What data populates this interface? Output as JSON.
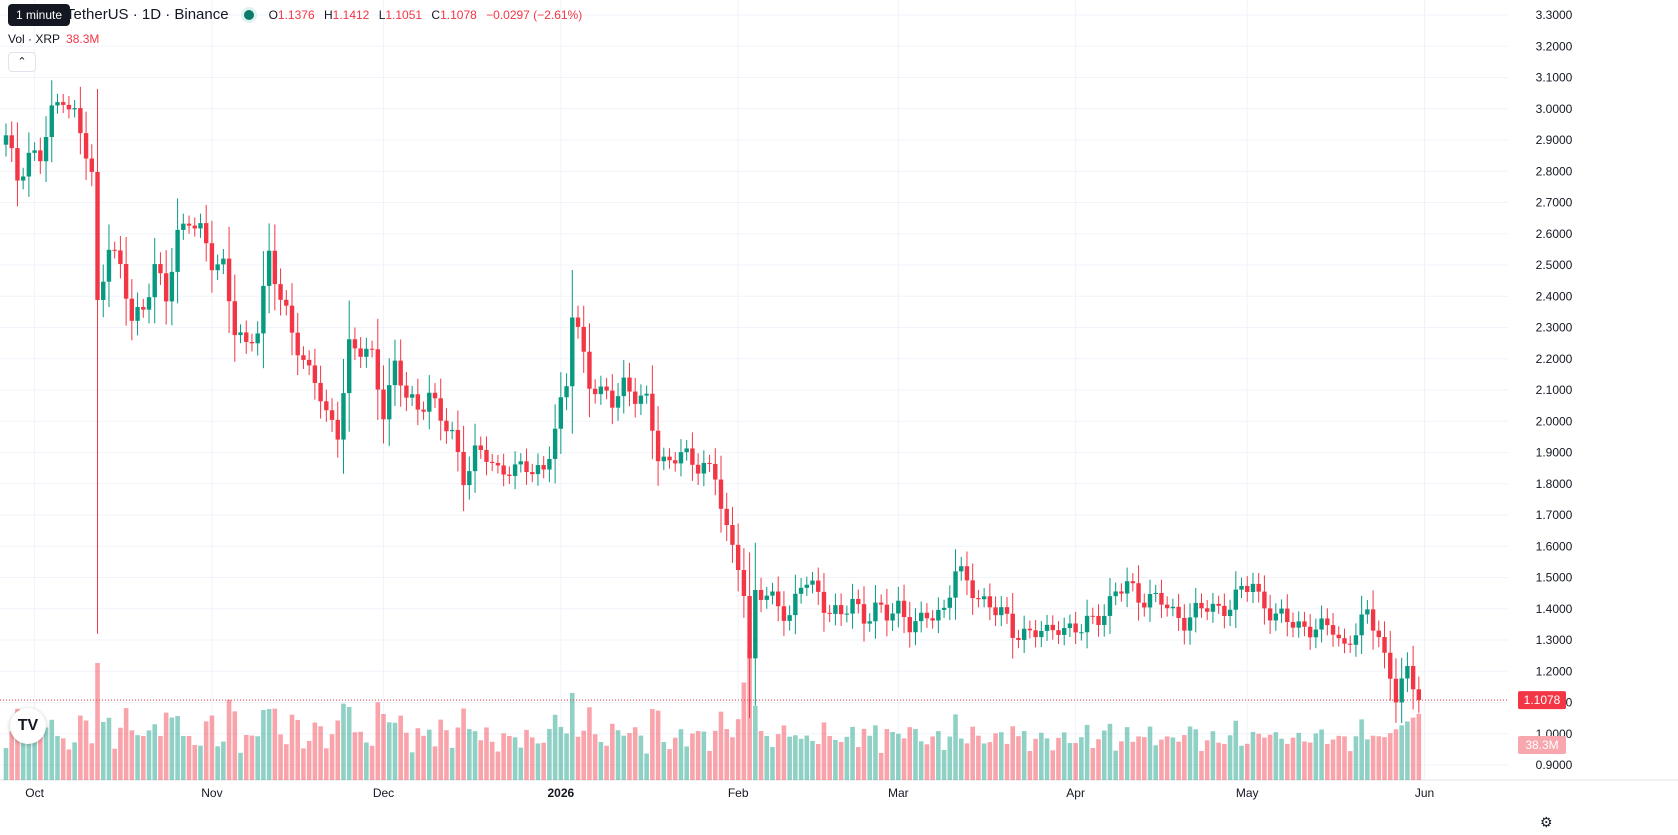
{
  "header": {
    "symbol": "TetherUS · 1D · Binance",
    "tooltip": "1 minute",
    "ohlc": {
      "o_label": "O",
      "o": "1.1376",
      "h_label": "H",
      "h": "1.1412",
      "l_label": "L",
      "l": "1.1051",
      "c_label": "C",
      "c": "1.1078",
      "change": "−0.0297 (−2.61%)"
    },
    "volume_label": "Vol · XRP",
    "volume_value": "38.3M",
    "collapse_icon": "chevron-up-icon",
    "logo_text": "TV",
    "settings_icon": "gear-icon"
  },
  "chart_data": {
    "type": "candlestick",
    "title": "",
    "up_color": "#089981",
    "down_color": "#f23645",
    "y_ticks": [
      "3.3000",
      "3.2000",
      "3.1000",
      "3.0000",
      "2.9000",
      "2.8000",
      "2.7000",
      "2.6000",
      "2.5000",
      "2.4000",
      "2.3000",
      "2.2000",
      "2.1000",
      "2.0000",
      "1.9000",
      "1.8000",
      "1.7000",
      "1.6000",
      "1.5000",
      "1.4000",
      "1.3000",
      "1.2000",
      "1.1000",
      "1.0000",
      "0.9000"
    ],
    "ylim": [
      0.9,
      3.3
    ],
    "x_labels": [
      {
        "label": "Oct",
        "day": 5
      },
      {
        "label": "Nov",
        "day": 36
      },
      {
        "label": "Dec",
        "day": 66
      },
      {
        "label": "2026",
        "day": 97
      },
      {
        "label": "Feb",
        "day": 128
      },
      {
        "label": "Mar",
        "day": 156
      },
      {
        "label": "Apr",
        "day": 187
      },
      {
        "label": "May",
        "day": 217
      },
      {
        "label": "Jun",
        "day": 248
      }
    ],
    "last_price": "1.1078",
    "last_volume": "38.3M",
    "anchors": [
      [
        0,
        2.9
      ],
      [
        2,
        2.78
      ],
      [
        4,
        2.86
      ],
      [
        6,
        2.84
      ],
      [
        8,
        2.98
      ],
      [
        10,
        3.05
      ],
      [
        12,
        2.98
      ],
      [
        14,
        2.85
      ],
      [
        15,
        2.78
      ],
      [
        16,
        2.37
      ],
      [
        18,
        2.58
      ],
      [
        20,
        2.48
      ],
      [
        22,
        2.32
      ],
      [
        24,
        2.37
      ],
      [
        26,
        2.5
      ],
      [
        28,
        2.38
      ],
      [
        30,
        2.6
      ],
      [
        32,
        2.66
      ],
      [
        34,
        2.6
      ],
      [
        36,
        2.5
      ],
      [
        38,
        2.51
      ],
      [
        40,
        2.3
      ],
      [
        42,
        2.22
      ],
      [
        44,
        2.3
      ],
      [
        46,
        2.55
      ],
      [
        48,
        2.38
      ],
      [
        50,
        2.28
      ],
      [
        52,
        2.2
      ],
      [
        54,
        2.14
      ],
      [
        56,
        2.0
      ],
      [
        58,
        1.97
      ],
      [
        60,
        2.25
      ],
      [
        62,
        2.22
      ],
      [
        64,
        2.2
      ],
      [
        66,
        2.04
      ],
      [
        68,
        2.18
      ],
      [
        70,
        2.07
      ],
      [
        72,
        2.04
      ],
      [
        74,
        2.1
      ],
      [
        76,
        2.0
      ],
      [
        78,
        1.95
      ],
      [
        80,
        1.83
      ],
      [
        82,
        1.9
      ],
      [
        84,
        1.88
      ],
      [
        86,
        1.84
      ],
      [
        88,
        1.86
      ],
      [
        90,
        1.84
      ],
      [
        92,
        1.84
      ],
      [
        94,
        1.85
      ],
      [
        96,
        1.98
      ],
      [
        98,
        2.1
      ],
      [
        99,
        2.35
      ],
      [
        100,
        2.3
      ],
      [
        102,
        2.13
      ],
      [
        104,
        2.08
      ],
      [
        106,
        2.06
      ],
      [
        108,
        2.13
      ],
      [
        110,
        2.08
      ],
      [
        112,
        2.05
      ],
      [
        114,
        1.9
      ],
      [
        116,
        1.87
      ],
      [
        118,
        1.9
      ],
      [
        120,
        1.85
      ],
      [
        122,
        1.88
      ],
      [
        124,
        1.82
      ],
      [
        126,
        1.64
      ],
      [
        127,
        1.58
      ],
      [
        128,
        1.55
      ],
      [
        129,
        1.47
      ],
      [
        130,
        1.23
      ],
      [
        131,
        1.45
      ],
      [
        133,
        1.43
      ],
      [
        135,
        1.42
      ],
      [
        137,
        1.38
      ],
      [
        139,
        1.47
      ],
      [
        140,
        1.48
      ],
      [
        142,
        1.45
      ],
      [
        144,
        1.4
      ],
      [
        146,
        1.37
      ],
      [
        148,
        1.42
      ],
      [
        150,
        1.38
      ],
      [
        152,
        1.4
      ],
      [
        154,
        1.37
      ],
      [
        156,
        1.41
      ],
      [
        158,
        1.36
      ],
      [
        160,
        1.35
      ],
      [
        162,
        1.38
      ],
      [
        164,
        1.4
      ],
      [
        166,
        1.53
      ],
      [
        168,
        1.47
      ],
      [
        170,
        1.44
      ],
      [
        172,
        1.42
      ],
      [
        174,
        1.38
      ],
      [
        176,
        1.32
      ],
      [
        178,
        1.33
      ],
      [
        180,
        1.33
      ],
      [
        182,
        1.31
      ],
      [
        184,
        1.35
      ],
      [
        186,
        1.34
      ],
      [
        188,
        1.33
      ],
      [
        190,
        1.36
      ],
      [
        192,
        1.4
      ],
      [
        194,
        1.45
      ],
      [
        196,
        1.47
      ],
      [
        198,
        1.44
      ],
      [
        200,
        1.44
      ],
      [
        202,
        1.42
      ],
      [
        204,
        1.38
      ],
      [
        206,
        1.37
      ],
      [
        208,
        1.39
      ],
      [
        210,
        1.4
      ],
      [
        212,
        1.4
      ],
      [
        214,
        1.42
      ],
      [
        216,
        1.45
      ],
      [
        218,
        1.48
      ],
      [
        219,
        1.44
      ],
      [
        220,
        1.42
      ],
      [
        222,
        1.37
      ],
      [
        224,
        1.36
      ],
      [
        226,
        1.35
      ],
      [
        228,
        1.34
      ],
      [
        230,
        1.33
      ],
      [
        232,
        1.34
      ],
      [
        234,
        1.28
      ],
      [
        236,
        1.33
      ],
      [
        238,
        1.37
      ],
      [
        240,
        1.33
      ],
      [
        241,
        1.25
      ],
      [
        242,
        1.18
      ],
      [
        243,
        1.12
      ],
      [
        244,
        1.16
      ],
      [
        245,
        1.18
      ],
      [
        246,
        1.15
      ],
      [
        247,
        1.1078
      ]
    ],
    "volume_max": 38.3
  }
}
